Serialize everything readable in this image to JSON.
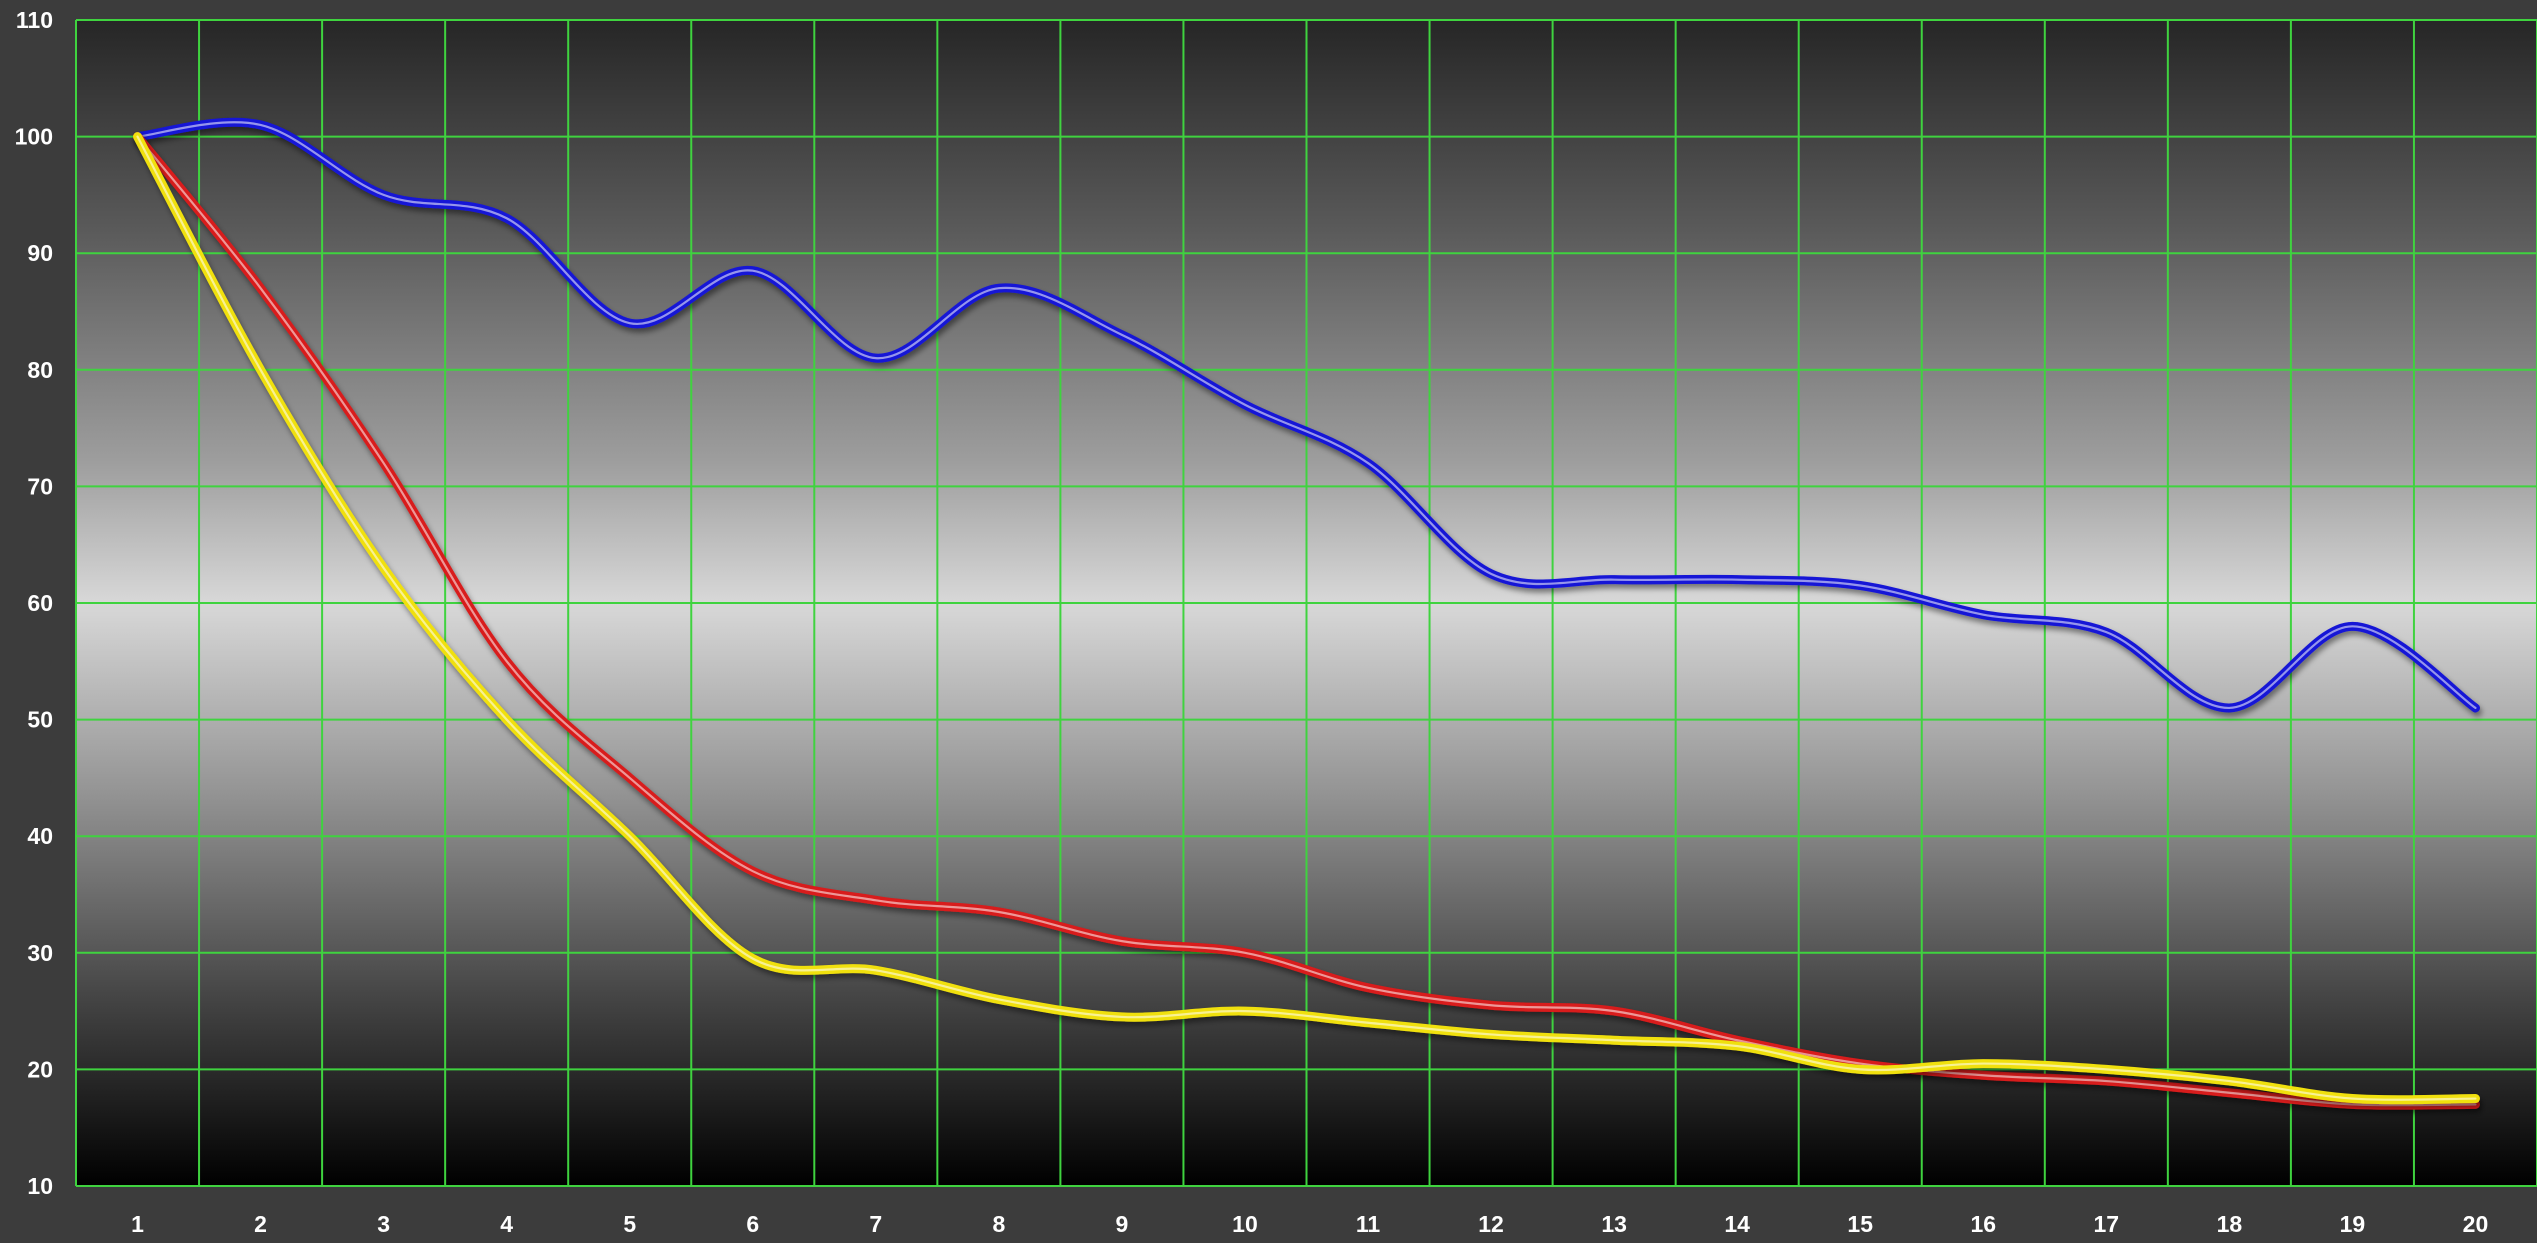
{
  "chart_data": {
    "type": "line",
    "title": "",
    "xlabel": "",
    "ylabel": "",
    "categories": [
      "1",
      "2",
      "3",
      "4",
      "5",
      "6",
      "7",
      "8",
      "9",
      "10",
      "11",
      "12",
      "13",
      "14",
      "15",
      "16",
      "17",
      "18",
      "19",
      "20"
    ],
    "y_ticks": [
      "10",
      "20",
      "30",
      "40",
      "50",
      "60",
      "70",
      "80",
      "90",
      "100",
      "110"
    ],
    "ylim": [
      10,
      110
    ],
    "grid": true,
    "legend": "none",
    "series": [
      {
        "color": "#1515d6",
        "values": [
          100,
          101,
          95,
          93,
          84,
          88.5,
          81,
          87,
          83,
          77,
          72,
          62.5,
          62,
          62,
          61.5,
          59,
          57.5,
          51,
          58,
          51
        ]
      },
      {
        "color": "#d81a1a",
        "values": [
          100,
          87,
          72,
          55,
          45,
          37,
          34.5,
          33.5,
          31,
          30,
          27,
          25.5,
          25,
          22.5,
          20.5,
          19.5,
          19,
          18,
          17,
          17
        ]
      },
      {
        "color": "#f0e010",
        "values": [
          100,
          80,
          63,
          50,
          40,
          29.5,
          28.5,
          26,
          24.5,
          25,
          24,
          23,
          22.5,
          22,
          20,
          20.5,
          20,
          19,
          17.5,
          17.5
        ]
      }
    ],
    "colors": {
      "page_background": "#3c3c3c",
      "grid": "#3fd33f",
      "plot_dark": "#000000",
      "plot_light": "#d8d8d8",
      "label": "#ffffff"
    }
  }
}
